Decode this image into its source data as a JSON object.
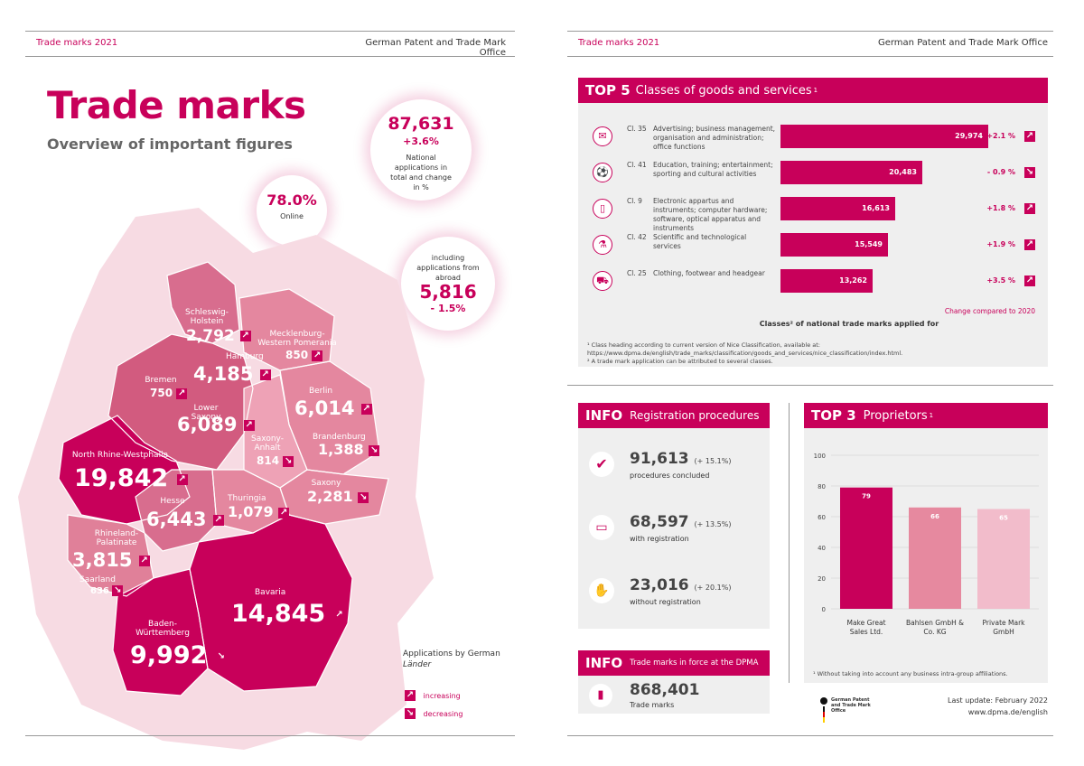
{
  "left_header": {
    "title": "Trade marks 2021",
    "office": "German Patent and Trade Mark Office"
  },
  "right_header": {
    "title": "Trade marks 2021",
    "office": "German Patent and Trade Mark Office"
  },
  "main_title": "Trade marks",
  "subtitle": "Overview of important figures",
  "stats": {
    "national": {
      "value": "87,631",
      "change": "+3.6%",
      "label": "National applications in total and change in %"
    },
    "online": {
      "value": "78.0%",
      "label": "Online"
    },
    "abroad": {
      "label": "including applications from abroad",
      "value": "5,816",
      "change": "- 1.5%"
    }
  },
  "states": [
    {
      "id": "schleswig",
      "name": "Schleswig-Holstein",
      "value": "2,792",
      "trend": "up"
    },
    {
      "id": "mecklenburg",
      "name": "Mecklenburg-Western Pomerania",
      "value": "850",
      "trend": "up"
    },
    {
      "id": "hamburg",
      "name": "Hamburg",
      "value": "4,185",
      "trend": "up"
    },
    {
      "id": "bremen",
      "name": "Bremen",
      "value": "750",
      "trend": "up"
    },
    {
      "id": "berlin",
      "name": "Berlin",
      "value": "6,014",
      "trend": "up"
    },
    {
      "id": "lowersaxony",
      "name": "Lower Saxony",
      "value": "6,089",
      "trend": "up"
    },
    {
      "id": "brandenburg",
      "name": "Brandenburg",
      "value": "1,388",
      "trend": "down"
    },
    {
      "id": "saxonyanhalt",
      "name": "Saxony-Anhalt",
      "value": "814",
      "trend": "down"
    },
    {
      "id": "nrw",
      "name": "North Rhine-Westphalia",
      "value": "19,842",
      "trend": "up"
    },
    {
      "id": "saxony",
      "name": "Saxony",
      "value": "2,281",
      "trend": "down"
    },
    {
      "id": "hesse",
      "name": "Hesse",
      "value": "6,443",
      "trend": "up"
    },
    {
      "id": "thuringia",
      "name": "Thuringia",
      "value": "1,079",
      "trend": "up"
    },
    {
      "id": "rhineland",
      "name": "Rhineland-Palatinate",
      "value": "3,815",
      "trend": "up"
    },
    {
      "id": "saarland",
      "name": "Saarland",
      "value": "636",
      "trend": "down"
    },
    {
      "id": "bavaria",
      "name": "Bavaria",
      "value": "14,845",
      "trend": "up"
    },
    {
      "id": "bw",
      "name": "Baden-Württemberg",
      "value": "9,992",
      "trend": "down"
    }
  ],
  "map_legend": {
    "title": "Applications by German ",
    "title_em": "Länder",
    "increasing": "increasing",
    "decreasing": "decreasing"
  },
  "top5": {
    "tag": "TOP 5",
    "title": "Classes of goods and services",
    "sup": "1",
    "classes": [
      {
        "code": "Cl. 35",
        "desc": "Advertising; business management, organisation and administration; office functions",
        "value": 29974,
        "value_label": "29,974",
        "change": "+2.1 %",
        "trend": "up"
      },
      {
        "code": "Cl. 41",
        "desc": "Education, training; entertainment; sporting and cultural activities",
        "value": 20483,
        "value_label": "20,483",
        "change": "- 0.9 %",
        "trend": "down"
      },
      {
        "code": "Cl. 9",
        "desc": "Electronic appartus and instruments; computer hardware; software, optical apparatus and instruments",
        "value": 16613,
        "value_label": "16,613",
        "change": "+1.8 %",
        "trend": "up"
      },
      {
        "code": "Cl. 42",
        "desc": "Scientific and technological services",
        "value": 15549,
        "value_label": "15,549",
        "change": "+1.9 %",
        "trend": "up"
      },
      {
        "code": "Cl. 25",
        "desc": "Clothing, footwear and headgear",
        "value": 13262,
        "value_label": "13,262",
        "change": "+3.5 %",
        "trend": "up"
      }
    ],
    "change_note": "Change compared to 2020",
    "axis_label": "Classes² of national trade marks applied for",
    "footnote1": "¹ Class heading according to current version of Nice Classification, available at: https://www.dpma.de/english/trade_marks/classification/goods_and_services/nice_classification/index.html.",
    "footnote2": "² A trade mark application can be attributed to several classes."
  },
  "info_reg": {
    "tag": "INFO",
    "title": "Registration procedures",
    "items": [
      {
        "value": "91,613",
        "change": "(+ 15.1%)",
        "label": "procedures concluded",
        "icon": "check-icon"
      },
      {
        "value": "68,597",
        "change": "(+ 13.5%)",
        "label": "with registration",
        "icon": "monitor-icon"
      },
      {
        "value": "23,016",
        "change": "(+ 20.1%)",
        "label": "without registration",
        "icon": "hand-icon"
      }
    ]
  },
  "info_force": {
    "tag": "INFO",
    "title": "Trade marks in force at the DPMA",
    "value": "868,401",
    "label": "Trade marks"
  },
  "top3": {
    "tag": "TOP 3",
    "title": "Proprietors",
    "sup": "1",
    "footnote": "¹ Without taking into account any business intra-group affiliations."
  },
  "chart_data": {
    "type": "bar",
    "categories": [
      "Make Great Sales Ltd.",
      "Bahlsen GmbH & Co. KG",
      "Private Mark GmbH"
    ],
    "values": [
      79,
      66,
      65
    ],
    "ylim": [
      0,
      100
    ],
    "yticks": [
      0,
      20,
      40,
      60,
      80,
      100
    ],
    "colors": [
      "#c8005a",
      "#e6899f",
      "#f2bccb"
    ],
    "grid": true
  },
  "footer": {
    "logo_text": "German Patent and Trade Mark Office",
    "update": "Last update: February 2022",
    "url": "www.dpma.de/english"
  }
}
